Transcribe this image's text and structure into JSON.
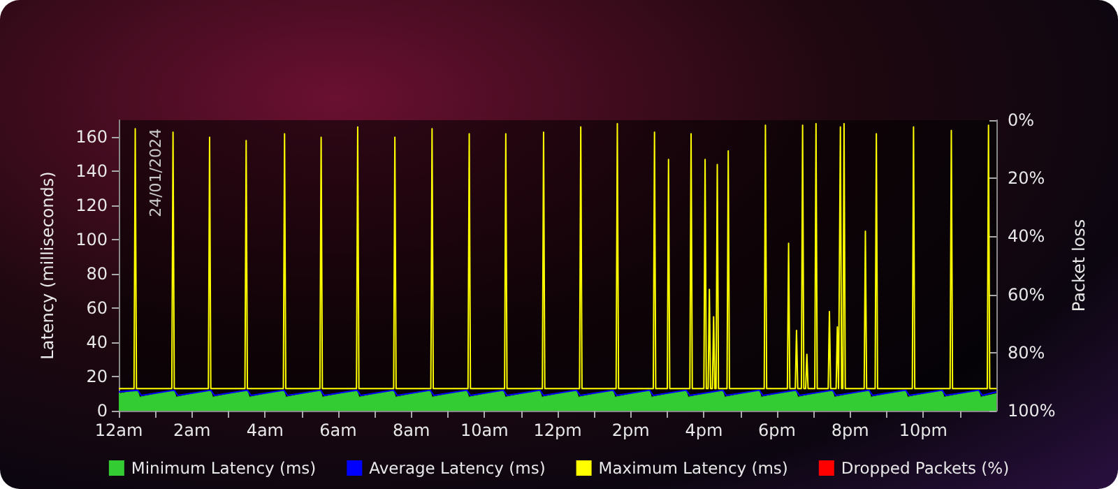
{
  "chart_data": {
    "type": "line",
    "ylabel": "Latency (milliseconds)",
    "y2label": "Packet loss",
    "annotations": [
      "24/01/2024"
    ],
    "xlim": [
      "2024-01-24T00:00",
      "2024-01-25T00:00"
    ],
    "xticks": [
      {
        "value": "2024-01-24T00:00",
        "label": "12am"
      },
      {
        "value": "2024-01-24T01:00",
        "label": null
      },
      {
        "value": "2024-01-24T02:00",
        "label": "2am"
      },
      {
        "value": "2024-01-24T03:00",
        "label": null
      },
      {
        "value": "2024-01-24T04:00",
        "label": "4am"
      },
      {
        "value": "2024-01-24T05:00",
        "label": null
      },
      {
        "value": "2024-01-24T06:00",
        "label": "6am"
      },
      {
        "value": "2024-01-24T07:00",
        "label": null
      },
      {
        "value": "2024-01-24T08:00",
        "label": "8am"
      },
      {
        "value": "2024-01-24T09:00",
        "label": null
      },
      {
        "value": "2024-01-24T10:00",
        "label": "10am"
      },
      {
        "value": "2024-01-24T11:00",
        "label": null
      },
      {
        "value": "2024-01-24T12:00",
        "label": "12pm"
      },
      {
        "value": "2024-01-24T13:00",
        "label": null
      },
      {
        "value": "2024-01-24T14:00",
        "label": "2pm"
      },
      {
        "value": "2024-01-24T15:00",
        "label": null
      },
      {
        "value": "2024-01-24T16:00",
        "label": "4pm"
      },
      {
        "value": "2024-01-24T17:00",
        "label": null
      },
      {
        "value": "2024-01-24T18:00",
        "label": "6pm"
      },
      {
        "value": "2024-01-24T19:00",
        "label": null
      },
      {
        "value": "2024-01-24T20:00",
        "label": "8pm"
      },
      {
        "value": "2024-01-24T21:00",
        "label": null
      },
      {
        "value": "2024-01-24T22:00",
        "label": "10pm"
      },
      {
        "value": "2024-01-24T23:00",
        "label": null
      }
    ],
    "ylim": [
      0,
      170
    ],
    "yticks": [
      0,
      20,
      40,
      60,
      80,
      100,
      120,
      140,
      160
    ],
    "y2lim": [
      100,
      0
    ],
    "y2ticks": [
      {
        "value": 0,
        "label": "0%"
      },
      {
        "value": 20,
        "label": "20%"
      },
      {
        "value": 40,
        "label": "40%"
      },
      {
        "value": 60,
        "label": "60%"
      },
      {
        "value": 80,
        "label": "80%"
      },
      {
        "value": 100,
        "label": "100%"
      }
    ],
    "legend": "bottom",
    "series": [
      {
        "name": "Minimum Latency (ms)",
        "type": "area",
        "color": "#33cc33",
        "x": [
          "2024-01-24T00:00",
          "2024-01-24T00:31",
          "2024-01-24T00:34",
          "2024-01-24T01:31",
          "2024-01-24T01:34",
          "2024-01-24T02:31",
          "2024-01-24T02:34",
          "2024-01-24T03:31",
          "2024-01-24T03:34",
          "2024-01-24T04:31",
          "2024-01-24T04:34",
          "2024-01-24T05:31",
          "2024-01-24T05:34",
          "2024-01-24T06:31",
          "2024-01-24T06:34",
          "2024-01-24T07:31",
          "2024-01-24T07:34",
          "2024-01-24T08:31",
          "2024-01-24T08:34",
          "2024-01-24T09:31",
          "2024-01-24T09:34",
          "2024-01-24T10:31",
          "2024-01-24T10:34",
          "2024-01-24T11:31",
          "2024-01-24T11:34",
          "2024-01-24T12:31",
          "2024-01-24T12:34",
          "2024-01-24T13:31",
          "2024-01-24T13:34",
          "2024-01-24T14:31",
          "2024-01-24T14:34",
          "2024-01-24T15:31",
          "2024-01-24T15:34",
          "2024-01-24T16:31",
          "2024-01-24T16:34",
          "2024-01-24T17:31",
          "2024-01-24T17:34",
          "2024-01-24T18:31",
          "2024-01-24T18:34",
          "2024-01-24T19:31",
          "2024-01-24T19:34",
          "2024-01-24T20:31",
          "2024-01-24T20:34",
          "2024-01-24T21:31",
          "2024-01-24T21:34",
          "2024-01-24T22:31",
          "2024-01-24T22:34",
          "2024-01-24T23:31",
          "2024-01-24T23:34",
          "2024-01-25T00:00"
        ],
        "values": [
          10,
          12,
          8,
          12,
          8,
          12,
          8,
          12,
          8,
          12,
          8,
          12,
          8,
          12,
          8,
          12,
          8,
          12,
          8,
          12,
          8,
          12,
          8,
          12,
          8,
          12,
          8,
          12,
          8,
          12,
          8,
          12,
          8,
          12,
          8,
          12,
          8,
          12,
          8,
          12,
          8,
          12,
          8,
          12,
          8,
          12,
          8,
          12,
          8,
          10
        ]
      },
      {
        "name": "Average Latency (ms)",
        "color": "#0000ff",
        "x": [
          "2024-01-24T00:00",
          "2024-01-24T00:31",
          "2024-01-24T00:37",
          "2024-01-24T01:31",
          "2024-01-24T01:37",
          "2024-01-24T02:31",
          "2024-01-24T02:37",
          "2024-01-24T03:31",
          "2024-01-24T03:37",
          "2024-01-24T04:31",
          "2024-01-24T04:37",
          "2024-01-24T05:31",
          "2024-01-24T05:37",
          "2024-01-24T06:31",
          "2024-01-24T06:37",
          "2024-01-24T07:31",
          "2024-01-24T07:37",
          "2024-01-24T08:31",
          "2024-01-24T08:37",
          "2024-01-24T09:31",
          "2024-01-24T09:37",
          "2024-01-24T10:31",
          "2024-01-24T10:37",
          "2024-01-24T11:31",
          "2024-01-24T11:37",
          "2024-01-24T12:31",
          "2024-01-24T12:37",
          "2024-01-24T13:31",
          "2024-01-24T13:37",
          "2024-01-24T14:31",
          "2024-01-24T14:37",
          "2024-01-24T15:31",
          "2024-01-24T15:37",
          "2024-01-24T16:31",
          "2024-01-24T16:37",
          "2024-01-24T17:31",
          "2024-01-24T17:37",
          "2024-01-24T18:31",
          "2024-01-24T18:37",
          "2024-01-24T19:31",
          "2024-01-24T19:37",
          "2024-01-24T20:31",
          "2024-01-24T20:37",
          "2024-01-24T21:31",
          "2024-01-24T21:37",
          "2024-01-24T22:31",
          "2024-01-24T22:37",
          "2024-01-24T23:31",
          "2024-01-24T23:37",
          "2024-01-25T00:00"
        ],
        "values": [
          11,
          12,
          9,
          12,
          9,
          12,
          9,
          12,
          9,
          12,
          9,
          12,
          9,
          12,
          9,
          12,
          9,
          12,
          9,
          12,
          9,
          12,
          9,
          12,
          9,
          12,
          9,
          12,
          9,
          12,
          9,
          12,
          9,
          12,
          9,
          12,
          9,
          12,
          9,
          12,
          9,
          12,
          9,
          12,
          9,
          12,
          9,
          12,
          9,
          11
        ]
      },
      {
        "name": "Maximum Latency (ms)",
        "color": "#ffff00",
        "x": [
          "2024-01-24T00:00",
          "2024-01-24T00:25",
          "2024-01-24T00:27",
          "2024-01-24T00:29",
          "2024-01-24T01:27",
          "2024-01-24T01:29",
          "2024-01-24T01:31",
          "2024-01-24T02:27",
          "2024-01-24T02:29",
          "2024-01-24T02:31",
          "2024-01-24T03:27",
          "2024-01-24T03:29",
          "2024-01-24T03:31",
          "2024-01-24T04:30",
          "2024-01-24T04:32",
          "2024-01-24T04:34",
          "2024-01-24T05:30",
          "2024-01-24T05:32",
          "2024-01-24T05:34",
          "2024-01-24T06:30",
          "2024-01-24T06:32",
          "2024-01-24T06:34",
          "2024-01-24T07:31",
          "2024-01-24T07:33",
          "2024-01-24T07:35",
          "2024-01-24T08:32",
          "2024-01-24T08:34",
          "2024-01-24T08:36",
          "2024-01-24T09:33",
          "2024-01-24T09:35",
          "2024-01-24T09:37",
          "2024-01-24T10:33",
          "2024-01-24T10:35",
          "2024-01-24T10:37",
          "2024-01-24T11:35",
          "2024-01-24T11:37",
          "2024-01-24T11:39",
          "2024-01-24T12:36",
          "2024-01-24T12:38",
          "2024-01-24T12:40",
          "2024-01-24T13:36",
          "2024-01-24T13:38",
          "2024-01-24T13:40",
          "2024-01-24T14:37",
          "2024-01-24T14:39",
          "2024-01-24T14:41",
          "2024-01-24T15:00",
          "2024-01-24T15:02",
          "2024-01-24T15:04",
          "2024-01-24T15:37",
          "2024-01-24T15:39",
          "2024-01-24T15:41",
          "2024-01-24T16:00",
          "2024-01-24T16:02",
          "2024-01-24T16:04",
          "2024-01-24T16:07",
          "2024-01-24T16:09",
          "2024-01-24T16:11",
          "2024-01-24T16:14",
          "2024-01-24T16:16",
          "2024-01-24T16:18",
          "2024-01-24T16:20",
          "2024-01-24T16:22",
          "2024-01-24T16:24",
          "2024-01-24T16:38",
          "2024-01-24T16:40",
          "2024-01-24T16:42",
          "2024-01-24T17:39",
          "2024-01-24T17:41",
          "2024-01-24T17:43",
          "2024-01-24T18:17",
          "2024-01-24T18:19",
          "2024-01-24T18:21",
          "2024-01-24T18:30",
          "2024-01-24T18:32",
          "2024-01-24T18:34",
          "2024-01-24T18:40",
          "2024-01-24T18:42",
          "2024-01-24T18:44",
          "2024-01-24T18:47",
          "2024-01-24T18:49",
          "2024-01-24T18:51",
          "2024-01-24T19:02",
          "2024-01-24T19:04",
          "2024-01-24T19:06",
          "2024-01-24T19:24",
          "2024-01-24T19:26",
          "2024-01-24T19:28",
          "2024-01-24T19:37",
          "2024-01-24T19:39",
          "2024-01-24T19:41",
          "2024-01-24T19:42",
          "2024-01-24T19:44",
          "2024-01-24T19:46",
          "2024-01-24T19:48",
          "2024-01-24T19:50",
          "2024-01-24T19:52",
          "2024-01-24T20:23",
          "2024-01-24T20:25",
          "2024-01-24T20:27",
          "2024-01-24T20:41",
          "2024-01-24T20:43",
          "2024-01-24T20:45",
          "2024-01-24T21:42",
          "2024-01-24T21:44",
          "2024-01-24T21:46",
          "2024-01-24T22:44",
          "2024-01-24T22:46",
          "2024-01-24T22:48",
          "2024-01-24T23:45",
          "2024-01-24T23:47",
          "2024-01-24T23:49",
          "2024-01-25T00:00"
        ],
        "values": [
          13,
          13,
          165,
          13,
          13,
          163,
          13,
          13,
          160,
          13,
          13,
          158,
          13,
          13,
          162,
          13,
          13,
          160,
          13,
          13,
          166,
          13,
          13,
          160,
          13,
          13,
          165,
          13,
          13,
          162,
          13,
          13,
          162,
          13,
          13,
          163,
          13,
          13,
          166,
          13,
          13,
          168,
          13,
          13,
          163,
          13,
          13,
          147,
          13,
          13,
          162,
          13,
          13,
          147,
          13,
          13,
          71,
          13,
          13,
          55,
          13,
          13,
          144,
          13,
          13,
          152,
          13,
          13,
          167,
          13,
          13,
          98,
          13,
          13,
          47,
          13,
          13,
          167,
          13,
          13,
          33,
          13,
          13,
          168,
          13,
          13,
          58,
          13,
          13,
          49,
          13,
          13,
          166,
          13,
          13,
          168,
          13,
          13,
          105,
          13,
          13,
          162,
          13,
          13,
          166,
          13,
          13,
          164,
          13,
          13,
          167,
          13,
          13
        ]
      },
      {
        "name": "Dropped Packets (%)",
        "type": "bar",
        "color": "#ff0000",
        "x": [
          "2024-01-24T00:00",
          "2024-01-24T01:00",
          "2024-01-24T02:00",
          "2024-01-24T03:00",
          "2024-01-24T04:00",
          "2024-01-24T05:00",
          "2024-01-24T06:00",
          "2024-01-24T07:00",
          "2024-01-24T08:00",
          "2024-01-24T09:00",
          "2024-01-24T10:00",
          "2024-01-24T11:00",
          "2024-01-24T12:00",
          "2024-01-24T13:00",
          "2024-01-24T14:00",
          "2024-01-24T15:00",
          "2024-01-24T16:00",
          "2024-01-24T17:00",
          "2024-01-24T18:00",
          "2024-01-24T19:00",
          "2024-01-24T20:00",
          "2024-01-24T21:00",
          "2024-01-24T22:00",
          "2024-01-24T23:00"
        ],
        "values": [
          0,
          0,
          0,
          0,
          0,
          0,
          0,
          0,
          0,
          0,
          0,
          0,
          0,
          0,
          0,
          0,
          0,
          0,
          0,
          0,
          0,
          0,
          0,
          0
        ]
      }
    ]
  }
}
